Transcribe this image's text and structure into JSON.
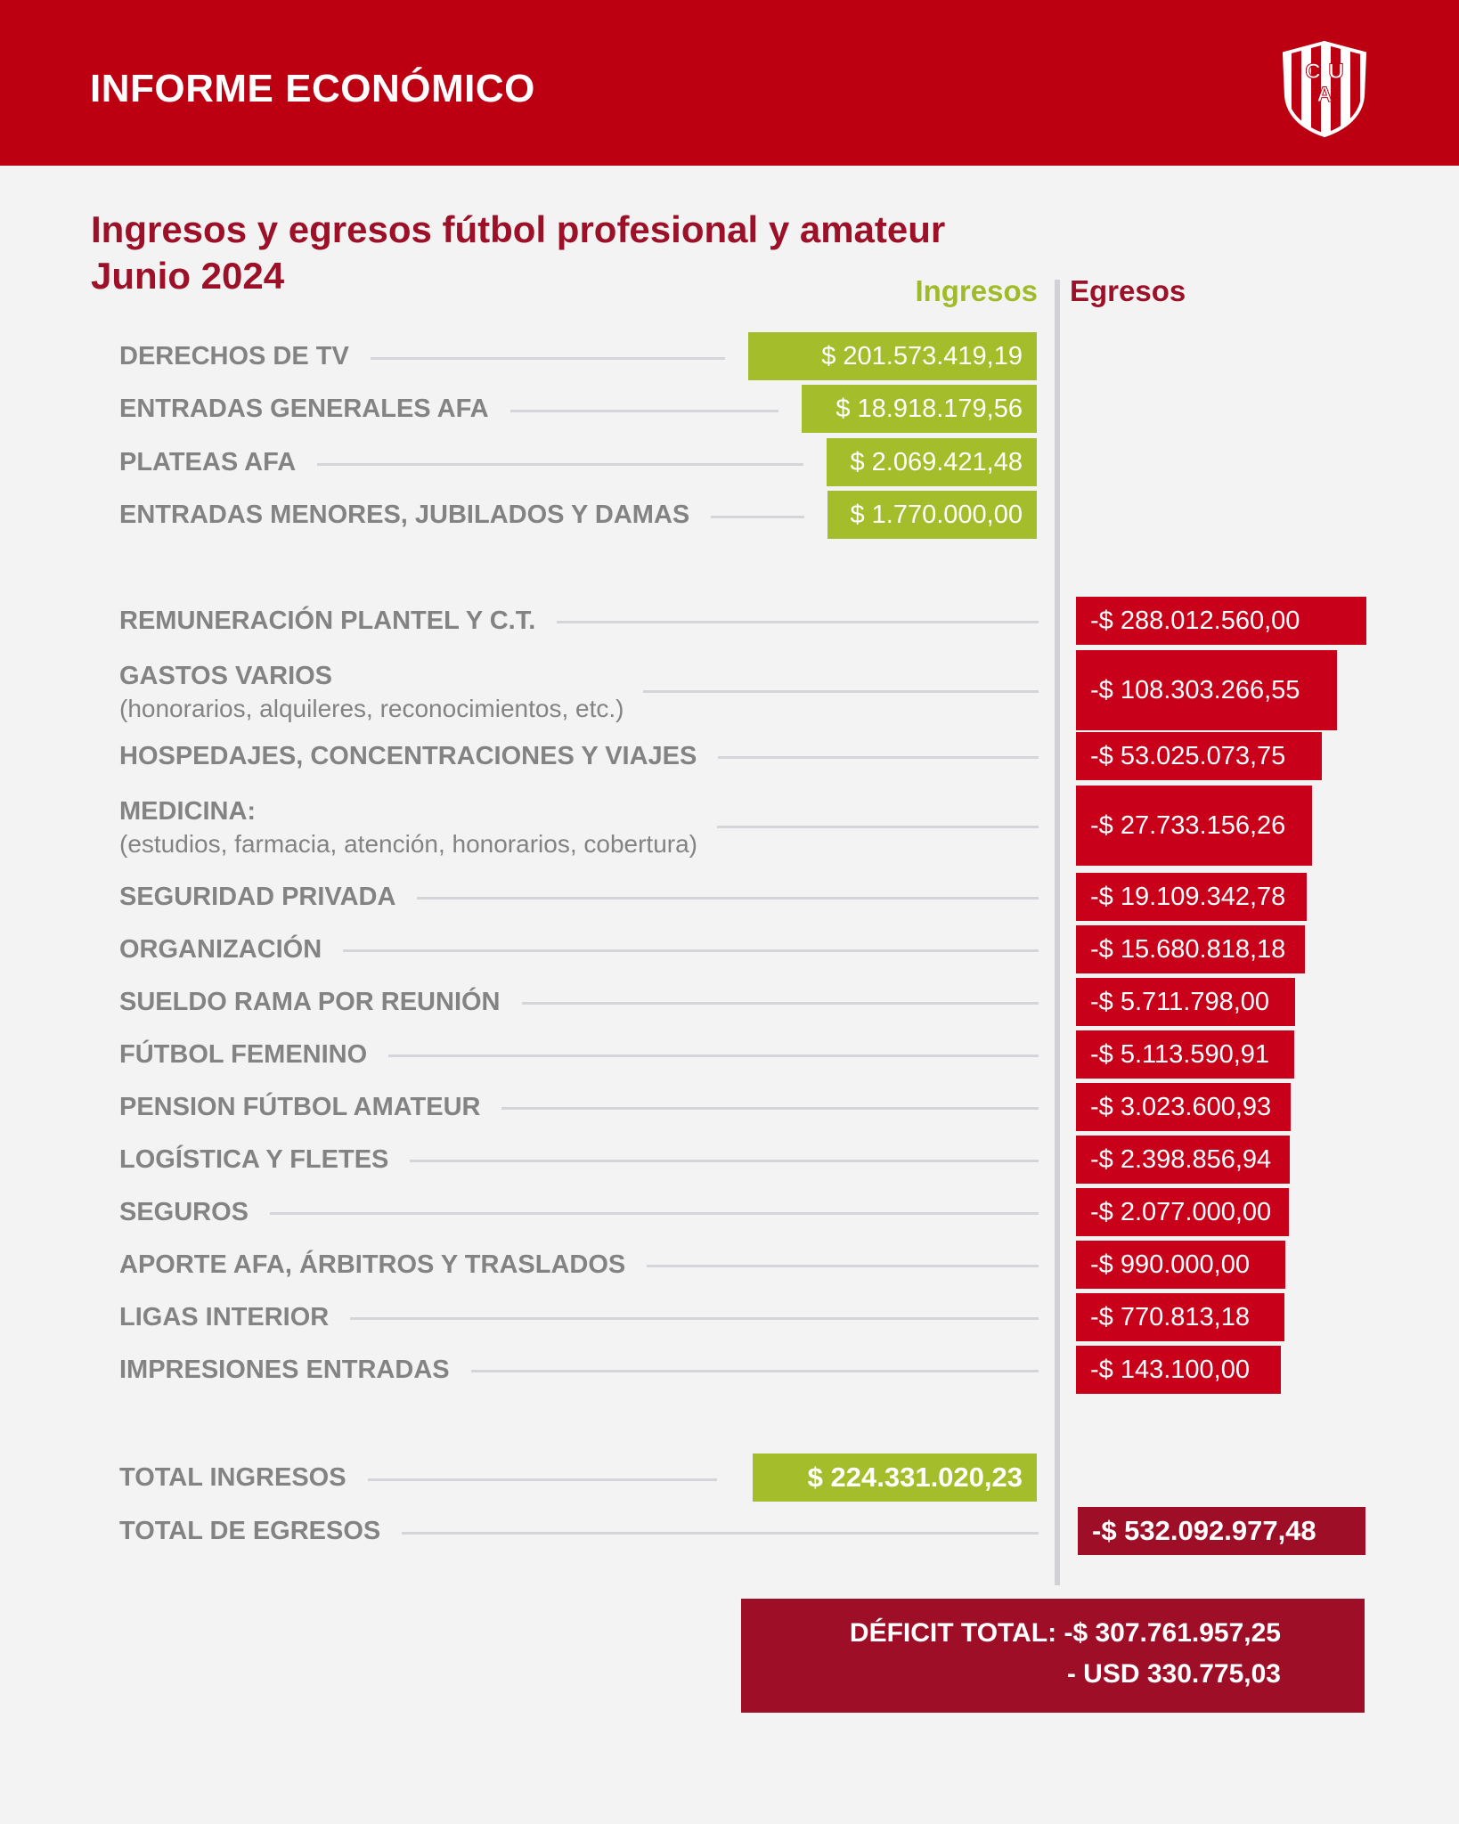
{
  "header": {
    "title": "INFORME ECONÓMICO",
    "crest_letters": [
      "C",
      "A",
      "U"
    ]
  },
  "title": {
    "line1": "Ingresos y egresos fútbol profesional y amateur",
    "line2": "Junio 2024"
  },
  "columns": {
    "ingresos": "Ingresos",
    "egresos": "Egresos"
  },
  "colors": {
    "header": "#bd0011",
    "ingresos": "#a3bd2b",
    "egresos": "#c8001a",
    "title": "#9c1028",
    "deficit": "#9e0f27"
  },
  "chart_data": {
    "type": "bar",
    "ingresos": [
      {
        "label": "DERECHOS DE TV",
        "display": "$ 201.573.419,19",
        "value": 201573419.19
      },
      {
        "label": "ENTRADAS GENERALES AFA",
        "display": "$ 18.918.179,56",
        "value": 18918179.56
      },
      {
        "label": "PLATEAS AFA",
        "display": "$ 2.069.421,48",
        "value": 2069421.48
      },
      {
        "label": "ENTRADAS MENORES, JUBILADOS Y  DAMAS",
        "display": "$ 1.770.000,00",
        "value": 1770000.0
      }
    ],
    "egresos": [
      {
        "label": "REMUNERACIÓN PLANTEL Y C.T.",
        "display": "-$ 288.012.560,00",
        "value": -288012560.0
      },
      {
        "label": "GASTOS VARIOS",
        "sublabel": "(honorarios, alquileres, reconocimientos, etc.)",
        "display": "-$ 108.303.266,55",
        "value": -108303266.55
      },
      {
        "label": "HOSPEDAJES, CONCENTRACIONES Y VIAJES",
        "display": "-$ 53.025.073,75",
        "value": -53025073.75
      },
      {
        "label": "MEDICINA:",
        "sublabel": "(estudios, farmacia, atención, honorarios, cobertura)",
        "display": "-$ 27.733.156,26",
        "value": -27733156.26
      },
      {
        "label": "SEGURIDAD PRIVADA",
        "display": "-$ 19.109.342,78",
        "value": -19109342.78
      },
      {
        "label": "ORGANIZACIÓN",
        "display": "-$ 15.680.818,18",
        "value": -15680818.18
      },
      {
        "label": "SUELDO RAMA POR REUNIÓN",
        "display": "-$ 5.711.798,00",
        "value": -5711798.0
      },
      {
        "label": "FÚTBOL FEMENINO",
        "display": "-$ 5.113.590,91",
        "value": -5113590.91
      },
      {
        "label": "PENSION FÚTBOL AMATEUR",
        "display": "-$ 3.023.600,93",
        "value": -3023600.93
      },
      {
        "label": "LOGÍSTICA Y FLETES",
        "display": "-$ 2.398.856,94",
        "value": -2398856.94
      },
      {
        "label": "SEGUROS",
        "display": "-$ 2.077.000,00",
        "value": -2077000.0
      },
      {
        "label": "APORTE AFA, ÁRBITROS Y TRASLADOS",
        "display": "-$ 990.000,00",
        "value": -990000.0
      },
      {
        "label": "LIGAS INTERIOR",
        "display": "-$ 770.813,18",
        "value": -770813.18
      },
      {
        "label": "IMPRESIONES ENTRADAS",
        "display": "-$ 143.100,00",
        "value": -143100.0
      }
    ],
    "totals": {
      "ingresos": {
        "label": "TOTAL INGRESOS",
        "display": "$ 224.331.020,23",
        "value": 224331020.23
      },
      "egresos": {
        "label": "TOTAL DE EGRESOS",
        "display": "-$ 532.092.977,48",
        "value": -532092977.48
      }
    }
  },
  "deficit": {
    "line1": "DÉFICIT TOTAL: -$ 307.761.957,25",
    "line2": "- USD 330.775,03"
  }
}
